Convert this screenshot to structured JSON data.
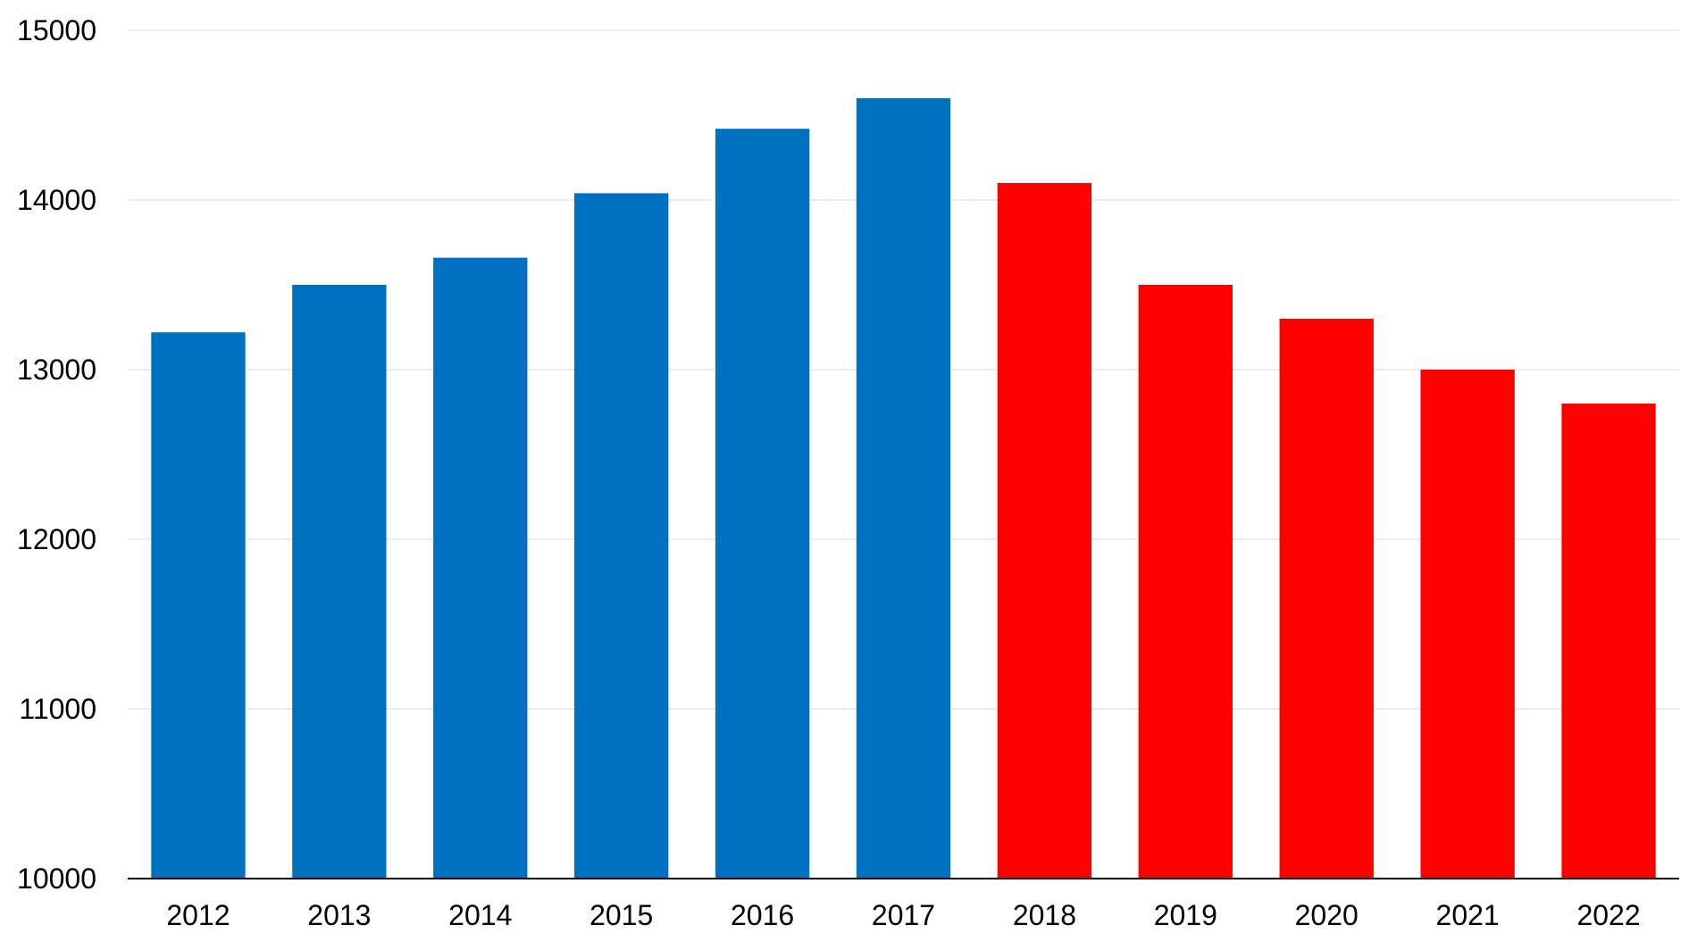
{
  "chart_data": {
    "type": "bar",
    "title": "",
    "xlabel": "",
    "ylabel": "",
    "ylim": [
      10000,
      15000
    ],
    "yticks": [
      "10000",
      "11000",
      "12000",
      "13000",
      "14000",
      "15000"
    ],
    "grid": true,
    "legend": "none",
    "categories": [
      "2012",
      "2013",
      "2014",
      "2015",
      "2016",
      "2017",
      "2018",
      "2019",
      "2020",
      "2021",
      "2022"
    ],
    "values": [
      13220,
      13500,
      13660,
      14040,
      14420,
      14600,
      14100,
      13500,
      13300,
      13000,
      12800
    ],
    "bar_colors": [
      "#0070C0",
      "#0070C0",
      "#0070C0",
      "#0070C0",
      "#0070C0",
      "#0070C0",
      "#FF0000",
      "#FF0000",
      "#FF0000",
      "#FF0000",
      "#FF0000"
    ]
  }
}
